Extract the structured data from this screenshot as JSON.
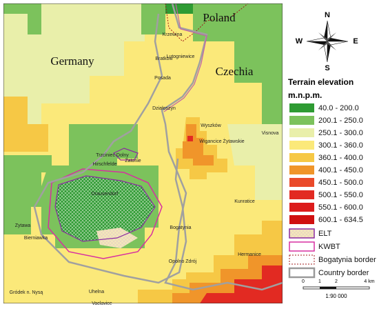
{
  "map": {
    "countries": [
      "Germany",
      "Poland",
      "Czechia"
    ],
    "places": [
      "Krzewina",
      "Bratków",
      "Lutogniewice",
      "Posada",
      "Działoszyn",
      "Wyszków",
      "Wigancice Żytawskie",
      "Visnova",
      "Trzciniec Dolny",
      "Hirschfelde",
      "Zatonie",
      "Drausendorf",
      "Zytawa",
      "Bierniawka",
      "Bogatynia",
      "Kunratice",
      "Opolno Zdrój",
      "Hermanice",
      "Uhelna",
      "Gródek n. Nysą",
      "Vaclavice"
    ],
    "compass": [
      "N",
      "E",
      "S",
      "W"
    ]
  },
  "legend": {
    "title": "Terrain elevation",
    "unit": "m.n.p.m.",
    "classes": [
      {
        "label": "40.0 - 200.0",
        "color": "#2e9b33"
      },
      {
        "label": "200.1 - 250.0",
        "color": "#7cc25c"
      },
      {
        "label": "250.1 - 300.0",
        "color": "#e9efaa"
      },
      {
        "label": "300.1 - 360.0",
        "color": "#fbe97a"
      },
      {
        "label": "360.1 - 400.0",
        "color": "#f6c845"
      },
      {
        "label": "400.1 - 450.0",
        "color": "#f0952a"
      },
      {
        "label": "450.1 - 500.0",
        "color": "#ea4a2a"
      },
      {
        "label": "500.1 - 550.0",
        "color": "#e22a22"
      },
      {
        "label": "550.1 - 600.0",
        "color": "#dc1c1c"
      },
      {
        "label": "600.1 - 634.5",
        "color": "#d01010"
      }
    ],
    "lines": [
      "ELT",
      "KWBT",
      "Bogatynia border",
      "Country border"
    ]
  },
  "scale": {
    "ticks": [
      "0",
      "1",
      "2",
      "4 km"
    ],
    "ratio": "1:90 000"
  }
}
